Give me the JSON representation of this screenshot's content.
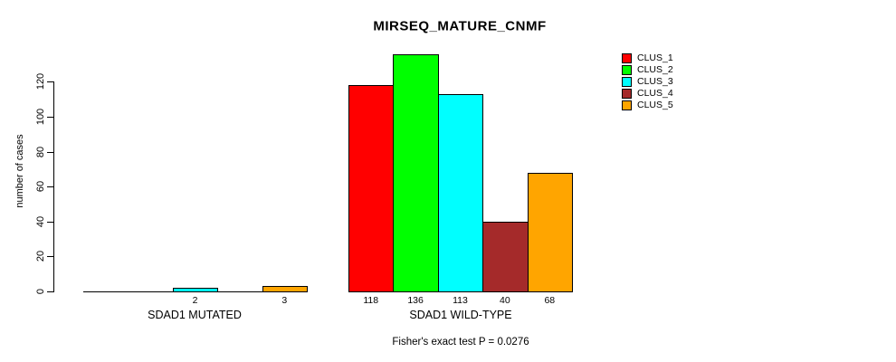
{
  "chart_data": {
    "type": "bar",
    "title": "MIRSEQ_MATURE_CNMF",
    "ylabel": "number of cases",
    "xlabel": "",
    "footer": "Fisher's exact test P = 0.0276",
    "y_ticks": [
      0,
      20,
      40,
      60,
      80,
      100,
      120
    ],
    "ylim": [
      0,
      136
    ],
    "grid": false,
    "legend_position": "top-right",
    "value_label_rule": "nonzero",
    "series": [
      {
        "name": "CLUS_1",
        "color": "#ff0000"
      },
      {
        "name": "CLUS_2",
        "color": "#00ff00"
      },
      {
        "name": "CLUS_3",
        "color": "#00ffff"
      },
      {
        "name": "CLUS_4",
        "color": "#a52a2a"
      },
      {
        "name": "CLUS_5",
        "color": "#ffa500"
      }
    ],
    "groups": [
      {
        "label": "SDAD1 MUTATED",
        "values": [
          0,
          0,
          2,
          0,
          3
        ]
      },
      {
        "label": "SDAD1 WILD-TYPE",
        "values": [
          118,
          136,
          113,
          40,
          68
        ]
      }
    ]
  }
}
